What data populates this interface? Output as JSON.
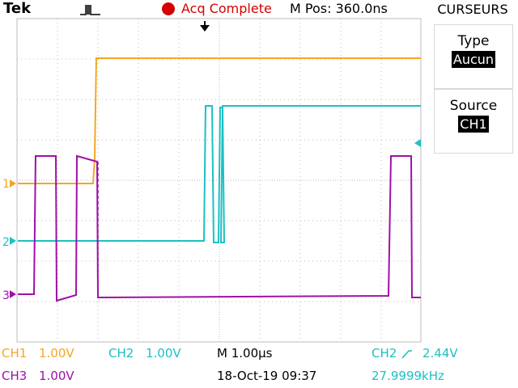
{
  "header": {
    "brand": "Tek",
    "trigger_icon": "pulse-waveform-icon",
    "acq_status": "Acq Complete",
    "acq_indicator_color": "#d40000",
    "m_pos": "M Pos: 360.0ns"
  },
  "menu": {
    "title": "CURSEURS",
    "items": [
      {
        "label": "Type",
        "value": "Aucun"
      },
      {
        "label": "Source",
        "value": "CH1"
      }
    ]
  },
  "channels": {
    "ch1": {
      "marker": "1",
      "color": "#f5a623"
    },
    "ch2": {
      "marker": "2",
      "color": "#1cc0c4"
    },
    "ch3": {
      "marker": "3",
      "color": "#a010a8"
    }
  },
  "footer": {
    "ch1_label": "CH1",
    "ch1_scale": "1.00V",
    "ch2_label": "CH2",
    "ch2_scale": "1.00V",
    "ch3_label": "CH3",
    "ch3_scale": "1.00V",
    "timebase": "M 1.00µs",
    "date_time": "18-Oct-19 09:37",
    "trigger_source": "CH2",
    "trigger_slope_icon": "rising-edge-icon",
    "trigger_level": "2.44V",
    "frequency": "27.9999kHz"
  }
}
